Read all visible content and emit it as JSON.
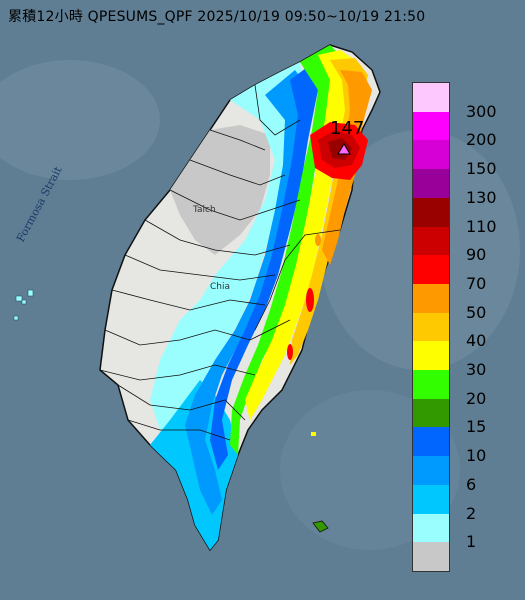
{
  "title": "累積12小時 QPESUMS_QPF 2025/10/19 09:50~10/19 21:50",
  "strait_label": "Formosa Strait",
  "max_value_label": "147",
  "city_labels": {
    "taichung": "Taich",
    "chiayi": "Chia"
  },
  "legend": {
    "labels": [
      "300",
      "200",
      "150",
      "130",
      "110",
      "90",
      "70",
      "50",
      "40",
      "30",
      "20",
      "15",
      "10",
      "6",
      "2",
      "1"
    ],
    "colors": [
      "#fdc8fd",
      "#fd00fd",
      "#d600d6",
      "#990099",
      "#990000",
      "#cc0000",
      "#fe0000",
      "#fe9900",
      "#fec900",
      "#fefe00",
      "#33fe00",
      "#339900",
      "#0066fe",
      "#0099fe",
      "#00c8fe",
      "#9afefe",
      "#c8c8c8"
    ],
    "colors_order": "top to bottom, last is lowest (< 1)"
  },
  "colors": {
    "sea": "#5f7e93",
    "land_dry": "#e6e6e2",
    "outline": "#111111"
  }
}
